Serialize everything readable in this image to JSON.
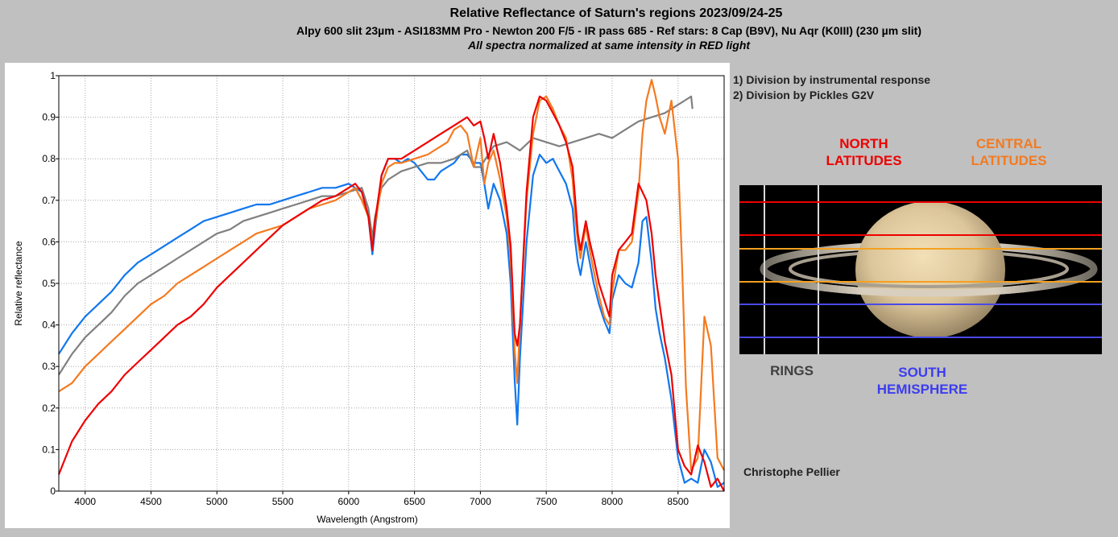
{
  "header": {
    "title": "Relative Reflectance of Saturn's regions 2023/09/24-25",
    "subtitle": "Alpy 600 slit 23µm - ASI183MM Pro - Newton 200 F/5 - IR pass 685 - Ref stars: 8 Cap (B9V), Nu Aqr (K0III) (230 µm slit)",
    "note": "All spectra normalized at same intensity in RED light"
  },
  "notes": [
    "1) Division by instrumental response",
    "2) Division by Pickles G2V"
  ],
  "labels": {
    "north": [
      "NORTH",
      "LATITUDES"
    ],
    "central": [
      "CENTRAL",
      "LATITUDES"
    ],
    "rings": "RINGS",
    "south": [
      "SOUTH",
      "HEMISPHERE"
    ]
  },
  "author": "Christophe Pellier",
  "colors": {
    "north": "#ee0000",
    "central": "#f47a20",
    "south": "#1177ee",
    "rings": "#808080",
    "south_label": "#3c3cf0",
    "background": "#c0c0c0"
  },
  "chart_data": {
    "type": "line",
    "title": "",
    "xlabel": "Wavelength (Angstrom)",
    "ylabel": "Relative reflectance",
    "xlim": [
      3800,
      8850
    ],
    "ylim": [
      0,
      1
    ],
    "xticks": [
      4000,
      4500,
      5000,
      5500,
      6000,
      6500,
      7000,
      7500,
      8000,
      8500
    ],
    "yticks": [
      0,
      0.1,
      0.2,
      0.3,
      0.4,
      0.5,
      0.6,
      0.7,
      0.8,
      0.9,
      1
    ],
    "ytick_labels": [
      "0",
      "0.1",
      "0.2",
      "0.3",
      "0.4",
      "0.5",
      "0.6",
      "0.7",
      "0.8",
      "0.9",
      "1"
    ],
    "grid": true,
    "legend": "none",
    "series": [
      {
        "key": "south",
        "x": [
          3800,
          3900,
          4000,
          4100,
          4200,
          4300,
          4400,
          4500,
          4600,
          4700,
          4800,
          4900,
          5000,
          5100,
          5200,
          5300,
          5400,
          5500,
          5600,
          5700,
          5800,
          5900,
          6000,
          6050,
          6100,
          6150,
          6180,
          6200,
          6250,
          6300,
          6350,
          6400,
          6450,
          6500,
          6550,
          6600,
          6650,
          6700,
          6750,
          6800,
          6850,
          6900,
          6950,
          7000,
          7030,
          7060,
          7100,
          7150,
          7200,
          7230,
          7260,
          7280,
          7300,
          7350,
          7400,
          7450,
          7500,
          7550,
          7600,
          7650,
          7700,
          7720,
          7740,
          7760,
          7800,
          7830,
          7860,
          7900,
          7940,
          7980,
          8000,
          8050,
          8100,
          8150,
          8200,
          8230,
          8260,
          8300,
          8330,
          8360,
          8400,
          8450,
          8500,
          8550,
          8600,
          8650,
          8700,
          8750,
          8800,
          8850
        ],
        "y": [
          0.33,
          0.38,
          0.42,
          0.45,
          0.48,
          0.52,
          0.55,
          0.57,
          0.59,
          0.61,
          0.63,
          0.65,
          0.66,
          0.67,
          0.68,
          0.69,
          0.69,
          0.7,
          0.71,
          0.72,
          0.73,
          0.73,
          0.74,
          0.73,
          0.72,
          0.66,
          0.57,
          0.63,
          0.76,
          0.8,
          0.8,
          0.79,
          0.8,
          0.79,
          0.77,
          0.75,
          0.75,
          0.77,
          0.78,
          0.79,
          0.81,
          0.81,
          0.79,
          0.79,
          0.74,
          0.68,
          0.74,
          0.7,
          0.62,
          0.5,
          0.27,
          0.16,
          0.32,
          0.6,
          0.76,
          0.81,
          0.79,
          0.8,
          0.77,
          0.74,
          0.68,
          0.6,
          0.55,
          0.52,
          0.6,
          0.55,
          0.5,
          0.45,
          0.41,
          0.38,
          0.46,
          0.52,
          0.5,
          0.49,
          0.55,
          0.65,
          0.66,
          0.55,
          0.44,
          0.38,
          0.32,
          0.22,
          0.08,
          0.02,
          0.03,
          0.02,
          0.1,
          0.07,
          0.01,
          0.02
        ]
      },
      {
        "key": "rings",
        "x": [
          3800,
          3900,
          4000,
          4100,
          4200,
          4300,
          4400,
          4500,
          4600,
          4700,
          4800,
          4900,
          5000,
          5100,
          5200,
          5300,
          5400,
          5500,
          5600,
          5700,
          5800,
          5900,
          6000,
          6100,
          6150,
          6180,
          6200,
          6250,
          6300,
          6400,
          6500,
          6600,
          6700,
          6800,
          6900,
          6950,
          7000,
          7100,
          7200,
          7300,
          7400,
          7500,
          7600,
          7700,
          7800,
          7900,
          8000,
          8100,
          8200,
          8300,
          8400,
          8500,
          8550,
          8600,
          8610
        ],
        "y": [
          0.28,
          0.33,
          0.37,
          0.4,
          0.43,
          0.47,
          0.5,
          0.52,
          0.54,
          0.56,
          0.58,
          0.6,
          0.62,
          0.63,
          0.65,
          0.66,
          0.67,
          0.68,
          0.69,
          0.7,
          0.71,
          0.71,
          0.72,
          0.73,
          0.68,
          0.61,
          0.66,
          0.73,
          0.75,
          0.77,
          0.78,
          0.79,
          0.79,
          0.8,
          0.82,
          0.78,
          0.78,
          0.83,
          0.84,
          0.82,
          0.85,
          0.84,
          0.83,
          0.84,
          0.85,
          0.86,
          0.85,
          0.87,
          0.89,
          0.9,
          0.91,
          0.93,
          0.94,
          0.95,
          0.92
        ]
      },
      {
        "key": "central",
        "x": [
          3800,
          3900,
          4000,
          4100,
          4200,
          4300,
          4400,
          4500,
          4600,
          4700,
          4800,
          4900,
          5000,
          5100,
          5200,
          5300,
          5400,
          5500,
          5600,
          5700,
          5800,
          5900,
          6000,
          6050,
          6100,
          6150,
          6180,
          6200,
          6250,
          6300,
          6350,
          6400,
          6500,
          6600,
          6700,
          6750,
          6800,
          6850,
          6900,
          6950,
          7000,
          7030,
          7060,
          7100,
          7150,
          7200,
          7230,
          7260,
          7280,
          7300,
          7350,
          7400,
          7450,
          7500,
          7550,
          7600,
          7650,
          7700,
          7720,
          7740,
          7760,
          7800,
          7830,
          7860,
          7900,
          7940,
          7980,
          8000,
          8050,
          8100,
          8150,
          8200,
          8230,
          8260,
          8300,
          8330,
          8360,
          8400,
          8450,
          8500,
          8530,
          8560,
          8600,
          8650,
          8700,
          8750,
          8800,
          8850
        ],
        "y": [
          0.24,
          0.26,
          0.3,
          0.33,
          0.36,
          0.39,
          0.42,
          0.45,
          0.47,
          0.5,
          0.52,
          0.54,
          0.56,
          0.58,
          0.6,
          0.62,
          0.63,
          0.64,
          0.66,
          0.68,
          0.69,
          0.7,
          0.72,
          0.73,
          0.7,
          0.66,
          0.59,
          0.64,
          0.74,
          0.78,
          0.79,
          0.79,
          0.8,
          0.81,
          0.83,
          0.84,
          0.87,
          0.88,
          0.86,
          0.78,
          0.85,
          0.74,
          0.79,
          0.82,
          0.75,
          0.66,
          0.56,
          0.34,
          0.26,
          0.4,
          0.7,
          0.86,
          0.94,
          0.95,
          0.92,
          0.88,
          0.85,
          0.75,
          0.66,
          0.6,
          0.56,
          0.64,
          0.58,
          0.53,
          0.47,
          0.42,
          0.4,
          0.48,
          0.58,
          0.58,
          0.6,
          0.72,
          0.86,
          0.94,
          0.99,
          0.95,
          0.9,
          0.86,
          0.94,
          0.8,
          0.55,
          0.25,
          0.05,
          0.08,
          0.42,
          0.35,
          0.08,
          0.05
        ]
      },
      {
        "key": "north",
        "x": [
          3800,
          3900,
          4000,
          4100,
          4200,
          4300,
          4400,
          4500,
          4600,
          4700,
          4800,
          4900,
          5000,
          5100,
          5200,
          5300,
          5400,
          5500,
          5600,
          5700,
          5800,
          5900,
          6000,
          6050,
          6100,
          6150,
          6180,
          6200,
          6250,
          6300,
          6350,
          6400,
          6500,
          6600,
          6700,
          6800,
          6900,
          6950,
          7000,
          7030,
          7060,
          7100,
          7150,
          7200,
          7230,
          7260,
          7280,
          7300,
          7350,
          7400,
          7450,
          7500,
          7550,
          7600,
          7650,
          7700,
          7720,
          7740,
          7760,
          7800,
          7830,
          7860,
          7900,
          7940,
          7980,
          8000,
          8050,
          8100,
          8150,
          8200,
          8230,
          8260,
          8300,
          8330,
          8360,
          8400,
          8450,
          8500,
          8550,
          8600,
          8650,
          8700,
          8750,
          8800,
          8850
        ],
        "y": [
          0.04,
          0.12,
          0.17,
          0.21,
          0.24,
          0.28,
          0.31,
          0.34,
          0.37,
          0.4,
          0.42,
          0.45,
          0.49,
          0.52,
          0.55,
          0.58,
          0.61,
          0.64,
          0.66,
          0.68,
          0.7,
          0.71,
          0.73,
          0.74,
          0.72,
          0.66,
          0.58,
          0.65,
          0.76,
          0.8,
          0.8,
          0.8,
          0.82,
          0.84,
          0.86,
          0.88,
          0.9,
          0.88,
          0.89,
          0.85,
          0.8,
          0.86,
          0.79,
          0.68,
          0.59,
          0.38,
          0.35,
          0.4,
          0.72,
          0.9,
          0.95,
          0.94,
          0.91,
          0.88,
          0.84,
          0.78,
          0.7,
          0.62,
          0.58,
          0.65,
          0.6,
          0.56,
          0.5,
          0.46,
          0.42,
          0.52,
          0.58,
          0.6,
          0.62,
          0.74,
          0.72,
          0.7,
          0.62,
          0.52,
          0.45,
          0.36,
          0.28,
          0.1,
          0.06,
          0.04,
          0.11,
          0.07,
          0.01,
          0.03,
          0.0
        ]
      }
    ]
  }
}
